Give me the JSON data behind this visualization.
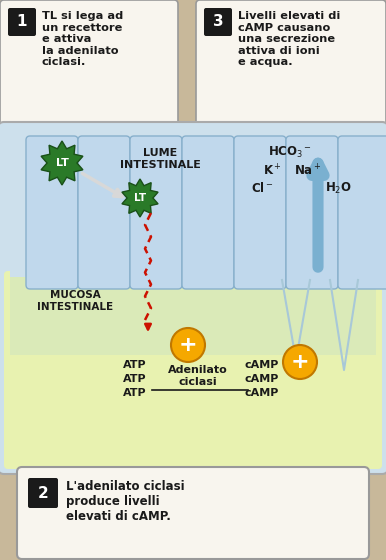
{
  "bg_color": "#c8b89a",
  "fig_width": 3.86,
  "fig_height": 5.6,
  "box1_text": "TL si lega ad\nun recettore\ne attiva\nla adenilato\nciclasi.",
  "box2_text": "L'adenilato ciclasi\nproduce livelli\nelevati di cAMP.",
  "box3_text": "Livelli elevati di\ncAMP causano\nuna secrezione\nattiva di ioni\ne acqua.",
  "lume_label": "LUME\nINTESTINALE",
  "mucosa_label": "MUCOSA\nINTESTINALE",
  "atp_labels": [
    "ATP",
    "ATP",
    "ATP"
  ],
  "adenilato_label": "Adenilato\nciclasi",
  "camp_labels": [
    "cAMP",
    "cAMP",
    "cAMP"
  ],
  "bg": "#c8b89a",
  "cell_lume_color": "#cde0ec",
  "cell_base_color": "#f0f5c8",
  "cell_mid_color": "#dcecd0",
  "box_bg": "#f8f5ee",
  "green_dark": "#2a7a28",
  "green_edge": "#1a5018",
  "orange_fill": "#f5a800",
  "orange_edge": "#c07800",
  "blue_arrow": "#7ab0d0",
  "red_zz": "#cc1100",
  "white_arr": "#e0e0e0",
  "villi_fill": "#c0d8ec",
  "villi_edge": "#88b0cc",
  "main_edge": "#aaaaaa",
  "text_dark": "#1a1a1a",
  "text_mid": "#333333"
}
